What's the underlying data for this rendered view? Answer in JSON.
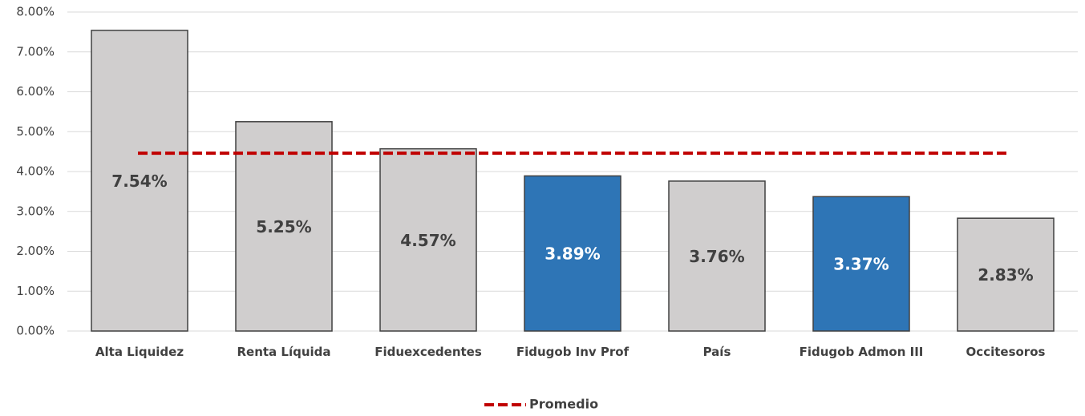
{
  "chart_data": {
    "type": "bar",
    "categories": [
      "Alta Liquidez",
      "Renta Líquida",
      "Fiduexcedentes",
      "Fidugob Inv Prof",
      "País",
      "Fidugob Admon III",
      "Occitesoros"
    ],
    "values": [
      7.54,
      5.25,
      4.57,
      3.89,
      3.76,
      3.37,
      2.83
    ],
    "value_labels": [
      "7.54%",
      "5.25%",
      "4.57%",
      "3.89%",
      "3.76%",
      "3.37%",
      "2.83%"
    ],
    "colors": [
      "#d0cece",
      "#d0cece",
      "#d0cece",
      "#2e75b6",
      "#d0cece",
      "#2e75b6",
      "#d0cece"
    ],
    "label_colors": [
      "#404040",
      "#404040",
      "#404040",
      "#ffffff",
      "#404040",
      "#ffffff",
      "#404040"
    ],
    "average": {
      "name": "Promedio",
      "value": 4.46,
      "color": "#c00000"
    },
    "ylim": [
      0,
      8
    ],
    "yticks": [
      {
        "value": 0,
        "label": "0.00%"
      },
      {
        "value": 1,
        "label": "1.00%"
      },
      {
        "value": 2,
        "label": "2.00%"
      },
      {
        "value": 3,
        "label": "3.00%"
      },
      {
        "value": 4,
        "label": "4.00%"
      },
      {
        "value": 5,
        "label": "5.00%"
      },
      {
        "value": 6,
        "label": "6.00%"
      },
      {
        "value": 7,
        "label": "7.00%"
      },
      {
        "value": 8,
        "label": "8.00%"
      }
    ],
    "grid": true,
    "legend": "bottom"
  }
}
